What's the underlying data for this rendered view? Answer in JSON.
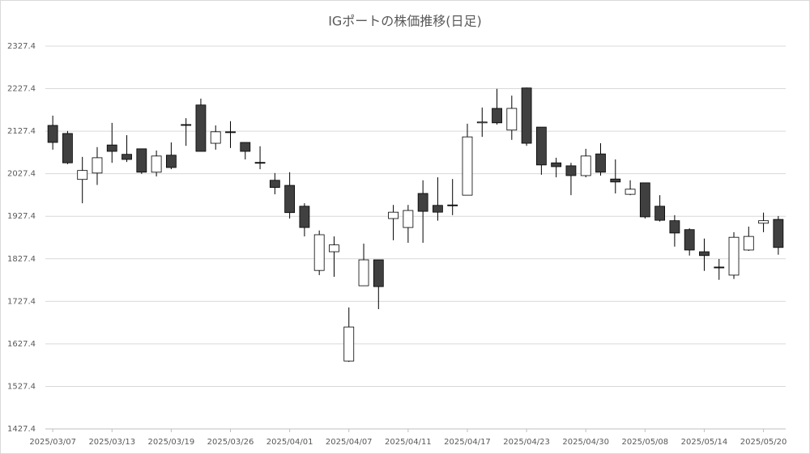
{
  "chart_data": {
    "type": "candlestick",
    "title": "IGポートの株価推移(日足)",
    "categories": [
      "2025/03/07",
      null,
      null,
      null,
      "2025/03/13",
      null,
      null,
      null,
      "2025/03/19",
      null,
      null,
      null,
      "2025/03/26",
      null,
      null,
      null,
      "2025/04/01",
      null,
      null,
      null,
      "2025/04/07",
      null,
      null,
      null,
      "2025/04/11",
      null,
      null,
      null,
      "2025/04/17",
      null,
      null,
      null,
      "2025/04/23",
      null,
      null,
      null,
      "2025/04/30",
      null,
      null,
      null,
      "2025/05/08",
      null,
      null,
      null,
      "2025/05/14",
      null,
      null,
      null,
      "2025/05/20",
      null
    ],
    "open": [
      2141,
      2122,
      2014,
      2029,
      2095,
      2073,
      2086,
      2031,
      2071,
      2143,
      2189,
      2099,
      2126,
      2101,
      2054,
      2012,
      2000,
      1951,
      1800,
      1844,
      1587,
      1764,
      1825,
      1922,
      1901,
      1981,
      1953,
      1954,
      1977,
      2147,
      2181,
      2130,
      2229,
      2137,
      2053,
      2046,
      2023,
      2074,
      2015,
      1979,
      2006,
      1951,
      1917,
      1896,
      1844,
      1808,
      1789,
      1848,
      1911,
      1920
    ],
    "high": [
      2164,
      2128,
      2067,
      2090,
      2147,
      2118,
      2086,
      2082,
      2101,
      2158,
      2204,
      2141,
      2151,
      2101,
      2092,
      2029,
      2031,
      1958,
      1894,
      1880,
      1713,
      1863,
      1825,
      1954,
      1954,
      2012,
      2019,
      2015,
      2145,
      2183,
      2227,
      2211,
      2230,
      2137,
      2065,
      2053,
      2086,
      2099,
      2061,
      2012,
      2006,
      1977,
      1930,
      1899,
      1875,
      1827,
      1890,
      1903,
      1936,
      1928
    ],
    "low": [
      2084,
      2050,
      1958,
      2001,
      2053,
      2055,
      2027,
      2021,
      2038,
      2093,
      2080,
      2084,
      2088,
      2061,
      2038,
      1979,
      1922,
      1880,
      1789,
      1785,
      1585,
      1764,
      1709,
      1871,
      1865,
      1865,
      1917,
      1930,
      1977,
      2114,
      2143,
      2107,
      2093,
      2025,
      2019,
      1977,
      2019,
      2023,
      1981,
      1977,
      1922,
      1915,
      1856,
      1835,
      1799,
      1778,
      1780,
      1846,
      1890,
      1837
    ],
    "close": [
      2101,
      2053,
      2035,
      2065,
      2080,
      2061,
      2031,
      2069,
      2042,
      2141,
      2080,
      2126,
      2124,
      2080,
      2052,
      1995,
      1936,
      1901,
      1884,
      1860,
      1667,
      1825,
      1762,
      1937,
      1941,
      1939,
      1937,
      1952,
      2114,
      2149,
      2147,
      2181,
      2099,
      2048,
      2044,
      2023,
      2069,
      2031,
      2008,
      1991,
      1926,
      1918,
      1888,
      1848,
      1835,
      1806,
      1878,
      1880,
      1917,
      1854
    ],
    "up_color": "#ffffff",
    "down_color": "#404040",
    "edge_color": "#000000",
    "ylim": [
      1427.4,
      2327.4
    ],
    "yticks": [
      1427.4,
      1527.4,
      1627.4,
      1727.4,
      1827.4,
      1927.4,
      2027.4,
      2127.4,
      2227.4,
      2327.4
    ],
    "grid": true
  }
}
